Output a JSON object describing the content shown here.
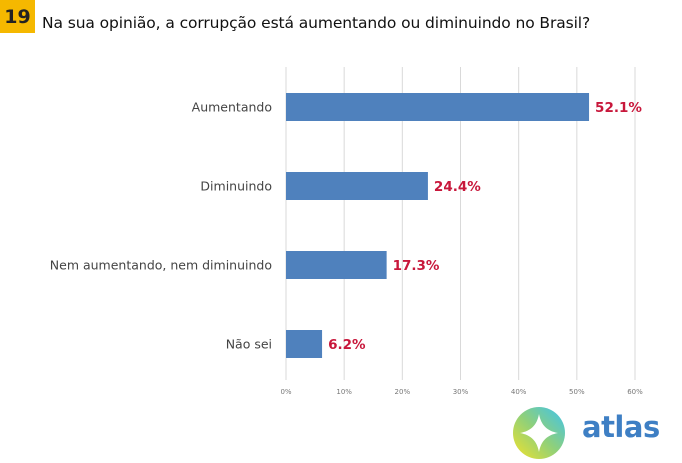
{
  "header": {
    "question_number": "19",
    "question": "Na sua opinião, a corrupção está aumentando ou diminuindo no Brasil?"
  },
  "brand": {
    "name": "atlas",
    "logo_icon": "atlas-compass-logo-icon"
  },
  "colors": {
    "badge": "#f5b800",
    "bar": "#4f81bd",
    "value_label": "#c8173b",
    "brand_text": "#3e7fc4"
  },
  "chart_data": {
    "type": "bar",
    "orientation": "horizontal",
    "title": "Na sua opinião, a corrupção está aumentando ou diminuindo no Brasil?",
    "categories": [
      "Aumentando",
      "Diminuindo",
      "Nem aumentando, nem diminuindo",
      "Não sei"
    ],
    "values": [
      52.1,
      24.4,
      17.3,
      6.2
    ],
    "value_labels": [
      "52.1%",
      "24.4%",
      "17.3%",
      "6.2%"
    ],
    "xlabel": "",
    "ylabel": "",
    "xlim": [
      0,
      60
    ],
    "x_ticks": [
      0,
      10,
      20,
      30,
      40,
      50,
      60
    ],
    "x_tick_labels": [
      "0%",
      "10%",
      "20%",
      "30%",
      "40%",
      "50%",
      "60%"
    ],
    "grid": true,
    "legend": "none"
  }
}
